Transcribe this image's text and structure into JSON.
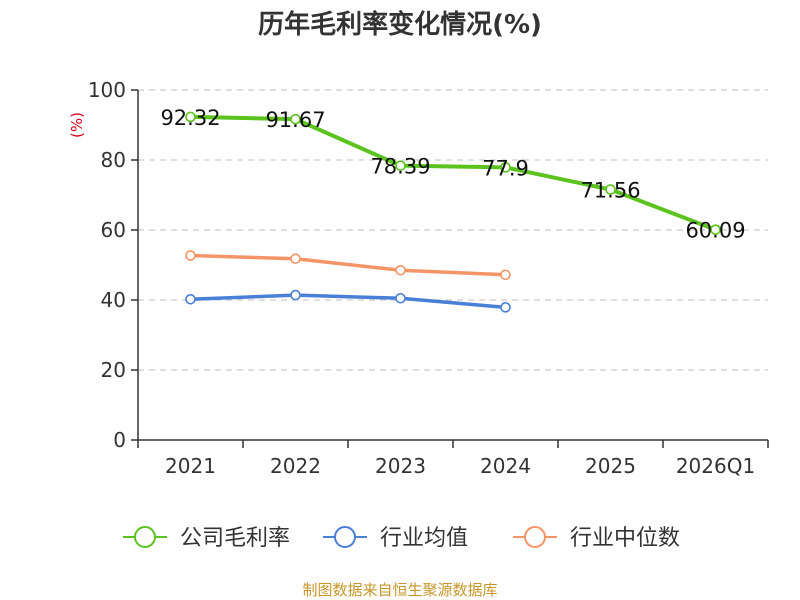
{
  "chart_data": {
    "type": "line",
    "title": "历年毛利率变化情况(%)",
    "ylabel": "(%)",
    "xlabel": "",
    "categories": [
      "2021",
      "2022",
      "2023",
      "2024",
      "2025",
      "2026Q1"
    ],
    "ylim": [
      0,
      100
    ],
    "yticks": [
      0,
      20,
      40,
      60,
      80,
      100
    ],
    "grid": true,
    "legend_position": "bottom",
    "series": [
      {
        "name": "公司毛利率",
        "color": "#5cc21e",
        "values": [
          92.32,
          91.67,
          78.39,
          77.9,
          71.56,
          60.09
        ],
        "labels": [
          "92.32",
          "91.67",
          "78.39",
          "77.9",
          "71.56",
          "60.09"
        ]
      },
      {
        "name": "行业均值",
        "color": "#4a7fd8",
        "values": [
          40.2,
          41.4,
          40.5,
          37.9,
          null,
          null
        ]
      },
      {
        "name": "行业中位数",
        "color": "#f59466",
        "values": [
          52.7,
          51.8,
          48.5,
          47.2,
          null,
          null
        ]
      }
    ],
    "source": "制图数据来自恒生聚源数据库"
  }
}
